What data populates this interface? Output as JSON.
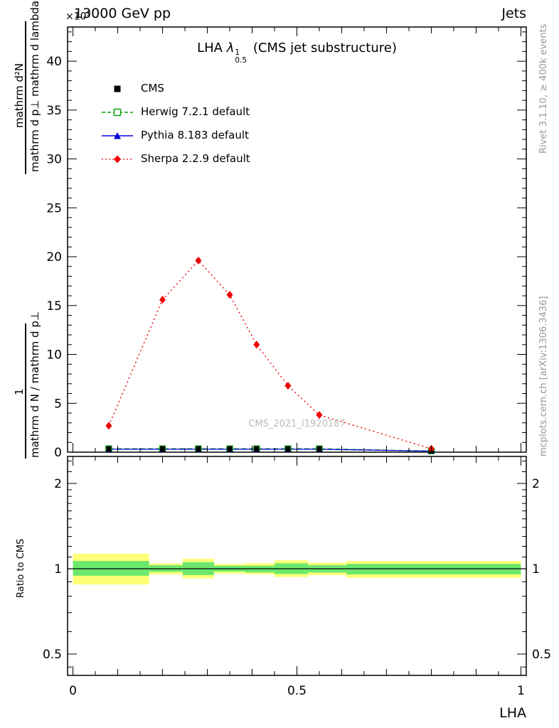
{
  "header": {
    "scale_base": "×10",
    "scale_exp": "3",
    "beam": "13000 GeV pp",
    "right": "Jets"
  },
  "title": {
    "prefix": "LHA",
    "lambda": "λ",
    "sup": "1",
    "sub": "0.5",
    "suffix": "(CMS jet substructure)"
  },
  "legend": {
    "items": [
      {
        "label": "CMS"
      },
      {
        "label": "Herwig 7.2.1 default"
      },
      {
        "label": "Pythia 8.183 default"
      },
      {
        "label": "Sherpa 2.2.9 default"
      }
    ]
  },
  "watermark": "CMS_2021_I1920187",
  "side_notes": {
    "top": "Rivet 3.1.10, ≥ 400k events",
    "bottom": "mcplots.cern.ch [arXiv:1306.3436]"
  },
  "axis_labels": {
    "x": "LHA",
    "ratio": "Ratio to CMS",
    "y_pre_num": "1",
    "y_pre_den": "mathrm d N / mathrm d p⊥",
    "y_num": "mathrm d²N",
    "y_den": "mathrm d p⊥ mathrm d lambda"
  },
  "colors": {
    "cms": "#000000",
    "herwig": "#00a000",
    "pythia": "#0000dd",
    "sherpa": "#ee0000",
    "band_yellow": "#ffff77",
    "band_green": "#6ce86c",
    "note_gray": "#979797",
    "watermark_gray": "#bcbcbc"
  },
  "chart_data": {
    "type": "line",
    "title": "LHA λ^1_0.5 (CMS jet substructure)",
    "xlabel": "LHA",
    "ylabel": "1/(dN/dp⊥) d²N/(dp⊥ dλ)",
    "y_scale": "×10³",
    "xlim": [
      0,
      1
    ],
    "ylim": [
      0,
      43.5
    ],
    "yticks": [
      0,
      5,
      10,
      15,
      20,
      25,
      30,
      35,
      40
    ],
    "xticks": [
      0,
      0.5,
      1
    ],
    "xtick_labels": [
      "0",
      "0.5",
      "1"
    ],
    "x": [
      0.08,
      0.2,
      0.28,
      0.35,
      0.41,
      0.48,
      0.55,
      0.8
    ],
    "series": [
      {
        "name": "CMS",
        "marker": "filled-square",
        "line": "none",
        "values": [
          0.35,
          0.35,
          0.35,
          0.35,
          0.35,
          0.35,
          0.35,
          0.12
        ]
      },
      {
        "name": "Herwig 7.2.1 default",
        "marker": "open-square",
        "line": "dashed",
        "values": [
          0.35,
          0.35,
          0.35,
          0.35,
          0.35,
          0.35,
          0.35,
          0.12
        ]
      },
      {
        "name": "Pythia 8.183 default",
        "marker": "triangle",
        "line": "solid",
        "values": [
          0.3,
          0.3,
          0.3,
          0.3,
          0.3,
          0.3,
          0.3,
          0.1
        ]
      },
      {
        "name": "Sherpa 2.2.9 default",
        "marker": "diamond",
        "line": "dotted",
        "values": [
          2.7,
          15.6,
          19.6,
          16.1,
          11.0,
          6.8,
          3.8,
          0.35
        ]
      }
    ],
    "ratio": {
      "label": "Ratio to CMS",
      "scale": "log",
      "yticks": [
        0.5,
        1,
        2
      ],
      "ytick_labels": [
        "0.5",
        "1",
        "2"
      ],
      "unity": 1,
      "bands": [
        {
          "x0": 0.0,
          "x1": 0.17,
          "yellow": [
            0.88,
            1.13
          ],
          "green": [
            0.945,
            1.065
          ]
        },
        {
          "x0": 0.17,
          "x1": 0.245,
          "yellow": [
            0.955,
            1.045
          ],
          "green": [
            0.975,
            1.03
          ]
        },
        {
          "x0": 0.245,
          "x1": 0.315,
          "yellow": [
            0.925,
            1.085
          ],
          "green": [
            0.95,
            1.055
          ]
        },
        {
          "x0": 0.315,
          "x1": 0.385,
          "yellow": [
            0.962,
            1.04
          ],
          "green": [
            0.978,
            1.025
          ]
        },
        {
          "x0": 0.385,
          "x1": 0.45,
          "yellow": [
            0.955,
            1.045
          ],
          "green": [
            0.97,
            1.025
          ]
        },
        {
          "x0": 0.45,
          "x1": 0.525,
          "yellow": [
            0.935,
            1.07
          ],
          "green": [
            0.958,
            1.045
          ]
        },
        {
          "x0": 0.525,
          "x1": 0.61,
          "yellow": [
            0.95,
            1.05
          ],
          "green": [
            0.97,
            1.03
          ]
        },
        {
          "x0": 0.61,
          "x1": 1.0,
          "yellow": [
            0.93,
            1.065
          ],
          "green": [
            0.955,
            1.04
          ]
        }
      ]
    }
  }
}
